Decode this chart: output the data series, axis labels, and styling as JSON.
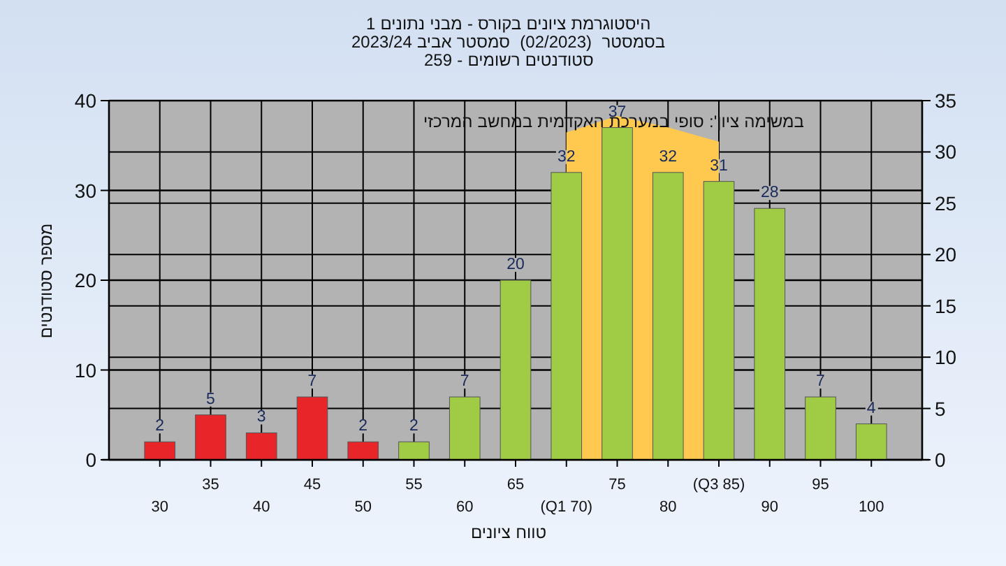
{
  "chart_data": {
    "type": "bar",
    "title": "היסטוגרמת ציונים בקורס - מבני נתונים 1",
    "subtitle": "בסמסטר  (02/2023)  סמסטר אביב 2023/24\nסטודנטים רשומים - 259",
    "xlabel": "טווח ציונים",
    "ylabel": "מספר סטודנטים",
    "annotations": [
      "במשימה :'ציון סופי במערכת האקדמית במחשב המרכזי"
    ],
    "categories": [
      "30",
      "35",
      "40",
      "45",
      "50",
      "55",
      "60",
      "65",
      "(Q1 70)",
      "75",
      "80",
      "(Q3 85)",
      "90",
      "95",
      "100"
    ],
    "series": [
      {
        "type": "area",
        "axis": "y2",
        "color": "#ffc94f",
        "values": [
          null,
          null,
          null,
          null,
          null,
          null,
          null,
          null,
          31.9,
          33.5,
          32.4,
          31,
          null,
          null,
          null
        ]
      },
      {
        "colors": [
          "#e8262a",
          "#e8262a",
          "#e8262a",
          "#e8262a",
          "#e8262a",
          "#9fcb45",
          "#9fcb45",
          "#9fcb45",
          "#9fcb45",
          "#9fcb45",
          "#9fcb45",
          "#9fcb45",
          "#9fcb45",
          "#9fcb45",
          "#9fcb45"
        ],
        "values": [
          2,
          5,
          3,
          7,
          2,
          2,
          7,
          20,
          32,
          37,
          32,
          31,
          28,
          7,
          4
        ],
        "value_labels": [
          "2",
          "5",
          "3",
          "7",
          "2",
          "2",
          "7",
          "20",
          "32",
          "37",
          "32",
          "31",
          "28",
          "7",
          "4"
        ]
      }
    ],
    "ylim": [
      0,
      40
    ],
    "yticks": [
      0,
      10,
      20,
      30,
      40
    ],
    "y2lim": [
      0,
      35
    ],
    "y2ticks": [
      0,
      5,
      10,
      15,
      20,
      25,
      30,
      35
    ],
    "grid": true
  }
}
